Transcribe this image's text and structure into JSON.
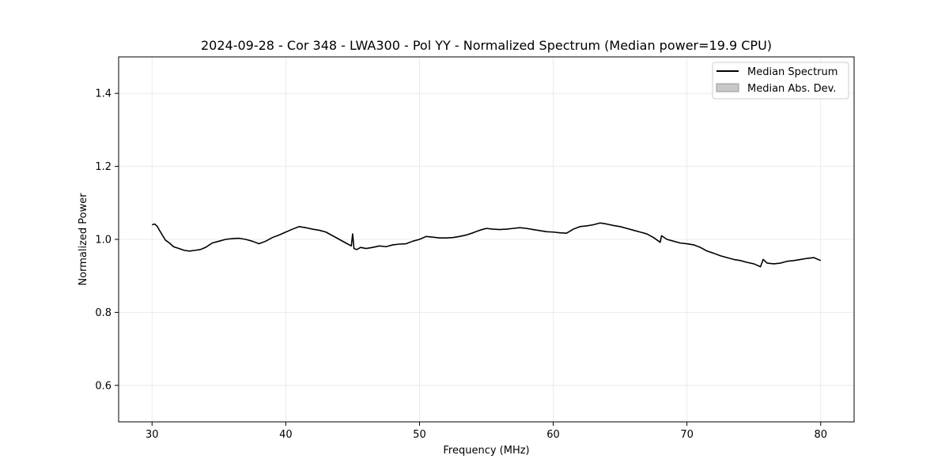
{
  "chart_data": {
    "type": "line",
    "title": "2024-09-28 - Cor 348 - LWA300 - Pol YY - Normalized Spectrum (Median power=19.9 CPU)",
    "xlabel": "Frequency (MHz)",
    "ylabel": "Normalized Power",
    "xlim": [
      27.5,
      82.5
    ],
    "ylim": [
      0.5,
      1.5
    ],
    "xticks": [
      30,
      40,
      50,
      60,
      70,
      80
    ],
    "yticks": [
      0.6,
      0.8,
      1.0,
      1.2,
      1.4
    ],
    "xtick_labels": [
      "30",
      "40",
      "50",
      "60",
      "70",
      "80"
    ],
    "ytick_labels": [
      "0.6",
      "0.8",
      "1.0",
      "1.2",
      "1.4"
    ],
    "grid": true,
    "legend_position": "top-right",
    "legend": [
      {
        "label": "Median Spectrum",
        "kind": "line",
        "color": "#000000"
      },
      {
        "label": "Median Abs. Dev.",
        "kind": "patch",
        "color": "#c8c8c8"
      }
    ],
    "series": [
      {
        "name": "Median Spectrum",
        "color": "#000000",
        "x": [
          30.0,
          30.2,
          30.4,
          30.6,
          30.8,
          31.0,
          31.3,
          31.6,
          32.0,
          32.4,
          32.8,
          33.2,
          33.6,
          34.0,
          34.5,
          35.0,
          35.5,
          36.0,
          36.5,
          37.0,
          37.5,
          38.0,
          38.5,
          39.0,
          39.5,
          40.0,
          40.5,
          41.0,
          41.5,
          42.0,
          42.5,
          43.0,
          43.5,
          44.0,
          44.5,
          44.9,
          45.0,
          45.1,
          45.3,
          45.6,
          46.0,
          46.5,
          47.0,
          47.5,
          48.0,
          48.5,
          49.0,
          49.5,
          50.0,
          50.5,
          51.0,
          51.5,
          52.0,
          52.5,
          53.0,
          53.5,
          54.0,
          54.5,
          55.0,
          55.5,
          56.0,
          56.5,
          57.0,
          57.5,
          58.0,
          58.5,
          59.0,
          59.5,
          60.0,
          60.5,
          61.0,
          61.5,
          62.0,
          62.5,
          63.0,
          63.5,
          64.0,
          64.5,
          65.0,
          65.5,
          66.0,
          66.5,
          67.0,
          67.5,
          68.0,
          68.1,
          68.5,
          69.0,
          69.5,
          70.0,
          70.5,
          71.0,
          71.5,
          72.0,
          72.5,
          73.0,
          73.5,
          74.0,
          74.5,
          75.0,
          75.5,
          75.7,
          76.0,
          76.5,
          77.0,
          77.5,
          78.0,
          78.5,
          79.0,
          79.5,
          80.0
        ],
        "values": [
          1.04,
          1.042,
          1.035,
          1.022,
          1.01,
          0.998,
          0.99,
          0.98,
          0.975,
          0.97,
          0.968,
          0.97,
          0.972,
          0.978,
          0.99,
          0.995,
          1.0,
          1.002,
          1.003,
          1.0,
          0.995,
          0.988,
          0.995,
          1.005,
          1.012,
          1.02,
          1.028,
          1.035,
          1.032,
          1.028,
          1.025,
          1.02,
          1.01,
          1.0,
          0.99,
          0.982,
          1.015,
          0.975,
          0.972,
          0.978,
          0.975,
          0.978,
          0.982,
          0.98,
          0.985,
          0.987,
          0.988,
          0.995,
          1.0,
          1.008,
          1.006,
          1.004,
          1.004,
          1.005,
          1.008,
          1.012,
          1.018,
          1.025,
          1.03,
          1.028,
          1.027,
          1.028,
          1.03,
          1.032,
          1.03,
          1.027,
          1.024,
          1.021,
          1.02,
          1.018,
          1.017,
          1.028,
          1.035,
          1.037,
          1.04,
          1.045,
          1.042,
          1.038,
          1.035,
          1.03,
          1.025,
          1.02,
          1.015,
          1.005,
          0.992,
          1.01,
          1.0,
          0.995,
          0.99,
          0.988,
          0.985,
          0.978,
          0.968,
          0.962,
          0.955,
          0.95,
          0.945,
          0.942,
          0.937,
          0.933,
          0.925,
          0.945,
          0.935,
          0.933,
          0.935,
          0.94,
          0.942,
          0.945,
          0.948,
          0.95,
          0.942
        ]
      }
    ]
  }
}
